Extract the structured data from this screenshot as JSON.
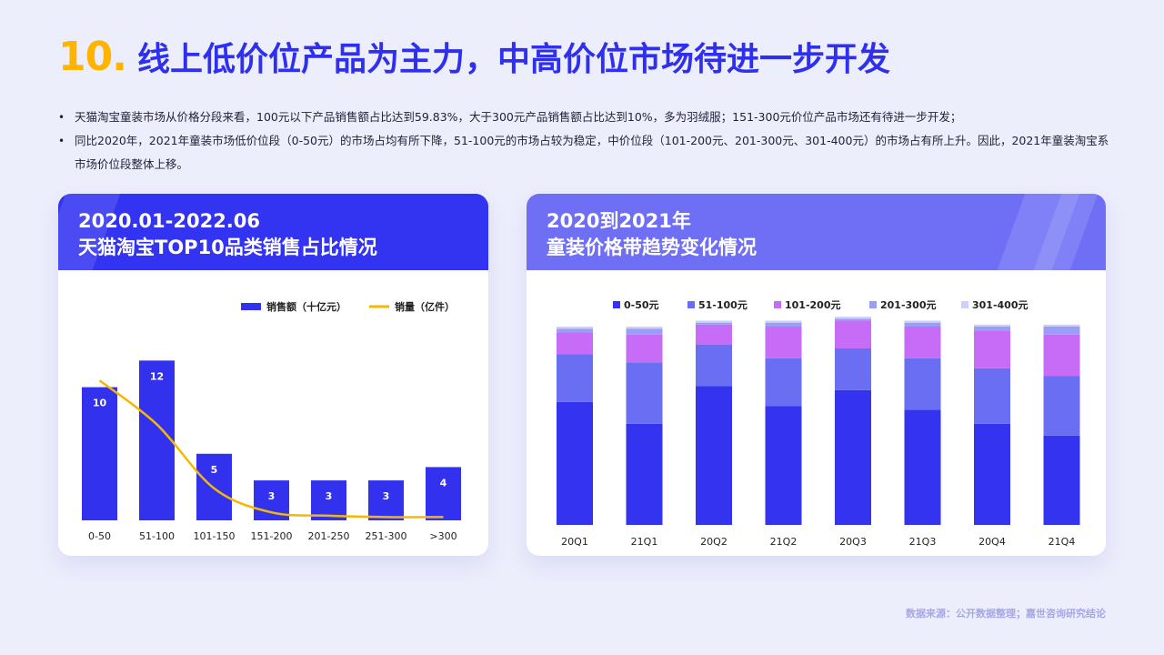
{
  "title": {
    "number": "10.",
    "text": "线上低价位产品为主力，中高价位市场待进一步开发"
  },
  "bullets": [
    "天猫淘宝童装市场从价格分段来看，100元以下产品销售额占比达到59.83%，大于300元产品销售额占比达到10%，多为羽绒服；151-300元价位产品市场还有待进一步开发；",
    "同比2020年，2021年童装市场低价位段（0-50元）的市场占均有所下降，51-100元的市场占较为稳定，中价位段（101-200元、201-300元、301-400元）的市场占有所上升。因此，2021年童装淘宝系市场价位段整体上移。"
  ],
  "left_card": {
    "title_line1": "2020.01-2022.06",
    "title_line2": "天猫淘宝TOP10品类销售占比情况"
  },
  "right_card": {
    "title_line1": "2020到2021年",
    "title_line2": "童装价格带趋势变化情况"
  },
  "source": "数据来源：公开数据整理；嘉世咨询研究结论",
  "chart_data": [
    {
      "type": "bar",
      "categories": [
        "0-50",
        "51-100",
        "101-150",
        "151-200",
        "201-250",
        "251-300",
        ">300"
      ],
      "series": [
        {
          "name": "销售额（十亿元）",
          "type": "bar",
          "values": [
            10,
            12,
            5,
            3,
            3,
            3,
            4
          ],
          "color": "#3232ee"
        },
        {
          "name": "销量（亿件）",
          "type": "line",
          "values": [
            10.5,
            7.2,
            2.4,
            0.6,
            0.35,
            0.25,
            0.25
          ],
          "color": "#f5b800"
        }
      ],
      "ylim": [
        0,
        12.5
      ],
      "legend": "top-right",
      "show_bar_labels": true
    },
    {
      "type": "bar",
      "stacked": true,
      "categories": [
        "20Q1",
        "21Q1",
        "20Q2",
        "21Q2",
        "20Q3",
        "21Q3",
        "20Q4",
        "21Q4"
      ],
      "series": [
        {
          "name": "0-50元",
          "values": [
            62,
            51,
            70,
            60,
            68,
            58,
            51,
            45
          ],
          "color": "#3333f0"
        },
        {
          "name": "51-100元",
          "values": [
            24,
            31,
            21,
            24,
            21,
            26,
            28,
            30
          ],
          "color": "#6a6ef2"
        },
        {
          "name": "101-200元",
          "values": [
            11,
            14,
            10,
            16,
            14,
            16,
            19,
            21
          ],
          "color": "#c66cf6"
        },
        {
          "name": "201-300元",
          "values": [
            2,
            3,
            1,
            2,
            1,
            2,
            2,
            4
          ],
          "color": "#9a9ef6"
        },
        {
          "name": "301-400元",
          "values": [
            1,
            1,
            1,
            1,
            1,
            1,
            1,
            1
          ],
          "color": "#cdd0fb"
        }
      ],
      "ylim": [
        0,
        100
      ],
      "legend": "top"
    }
  ]
}
